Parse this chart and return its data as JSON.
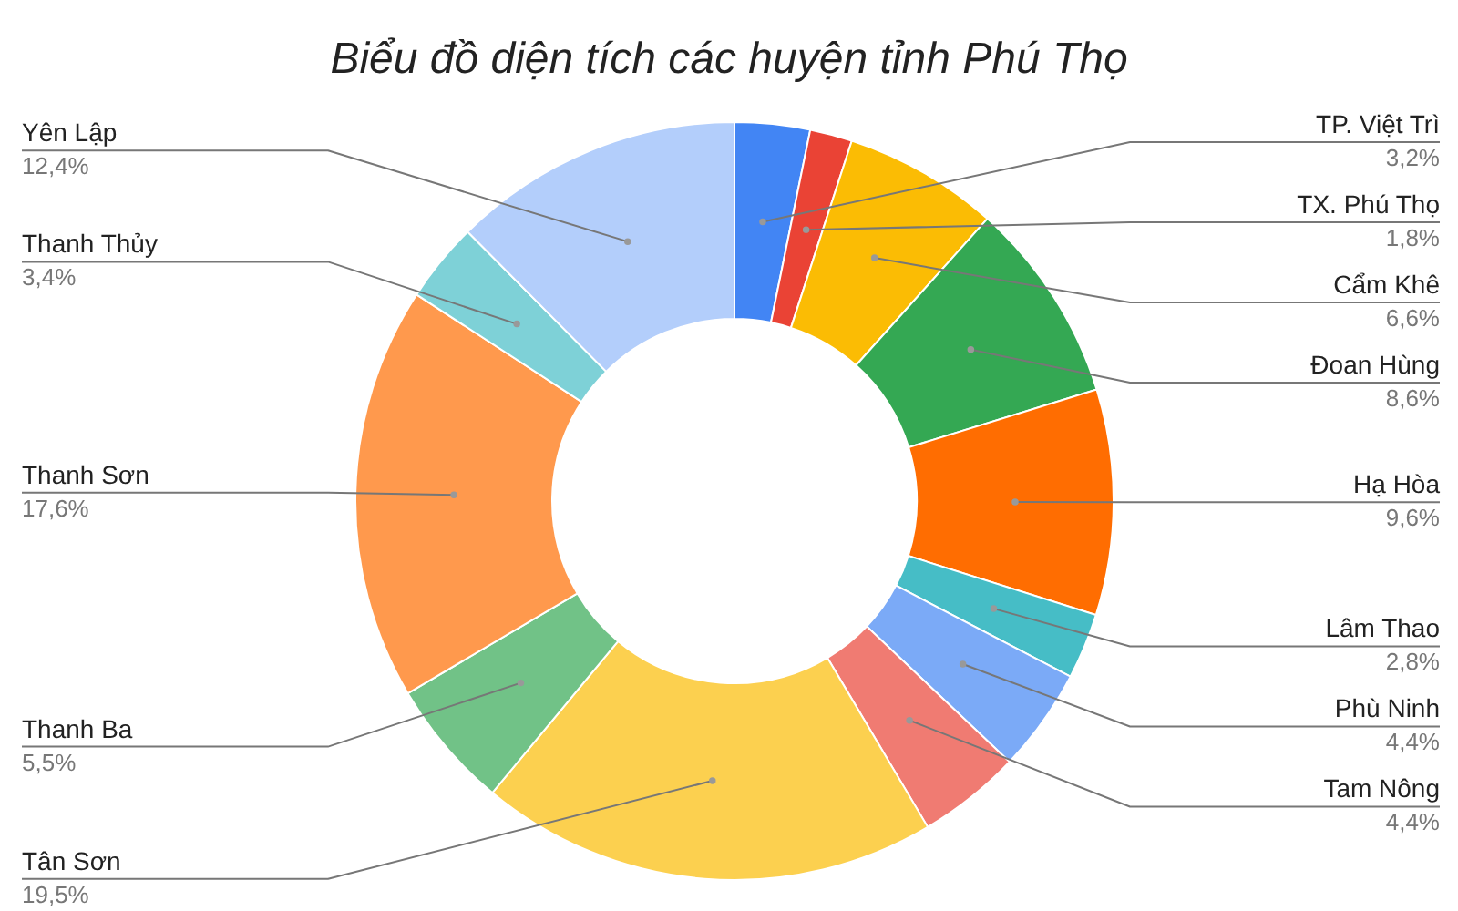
{
  "chart_data": {
    "type": "donut",
    "title": "Biểu đồ diện tích các huyện tỉnh Phú Thọ",
    "categories": [
      "TP. Việt Trì",
      "TX. Phú Thọ",
      "Cẩm Khê",
      "Đoan Hùng",
      "Hạ Hòa",
      "Lâm Thao",
      "Phù Ninh",
      "Tam Nông",
      "Tân Sơn",
      "Thanh Ba",
      "Thanh Sơn",
      "Thanh Thủy",
      "Yên Lập"
    ],
    "values": [
      3.2,
      1.8,
      6.6,
      8.6,
      9.6,
      2.8,
      4.4,
      4.4,
      19.5,
      5.5,
      17.6,
      3.4,
      12.4
    ],
    "value_labels": [
      "3,2%",
      "1,8%",
      "6,6%",
      "8,6%",
      "9,6%",
      "2,8%",
      "4,4%",
      "4,4%",
      "19,5%",
      "5,5%",
      "17,6%",
      "3,4%",
      "12,4%"
    ],
    "colors": [
      "#4285f4",
      "#ea4335",
      "#fbbc04",
      "#34a853",
      "#ff6d01",
      "#46bdc6",
      "#7baaf7",
      "#f07b72",
      "#fcd04f",
      "#71c287",
      "#ff994d",
      "#7ed1d7",
      "#b3cefb"
    ]
  }
}
